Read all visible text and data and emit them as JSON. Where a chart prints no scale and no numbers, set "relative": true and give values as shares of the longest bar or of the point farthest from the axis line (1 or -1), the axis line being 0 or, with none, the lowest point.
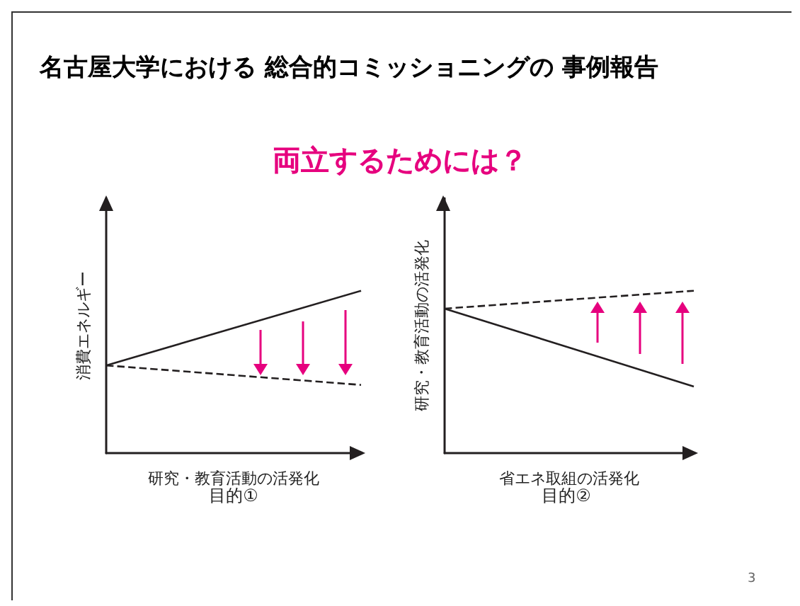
{
  "chart_data": [
    {
      "type": "line",
      "title": "名古屋大学における 総合的コミッショニングの 事例報告",
      "subtitle": "両立するためには？",
      "xlabel": "研究・教育活動の活発化",
      "ylabel": "消費エネルギー",
      "relative": true,
      "categories": [
        null,
        null
      ],
      "marker": "none",
      "annotations": [
        "目的①"
      ],
      "series": [
        {
          "color": "#231f20",
          "values": [
            0.54,
            1
          ],
          "line_style": "solid"
        },
        {
          "color": "#231f20",
          "values": [
            0.54,
            0.42
          ],
          "line_style": "dashed"
        }
      ]
    },
    {
      "type": "line",
      "xlabel": "省エネ取組の活発化",
      "ylabel": "研究・教育活動の活発化",
      "relative": true,
      "categories": [
        null,
        null
      ],
      "marker": "none",
      "annotations": [
        "目的②",
        "3"
      ],
      "series": [
        {
          "color": "#231f20",
          "values": [
            0.89,
            0.41
          ],
          "line_style": "solid"
        },
        {
          "color": "#231f20",
          "values": [
            0.89,
            1
          ],
          "line_style": "dashed"
        }
      ]
    }
  ]
}
